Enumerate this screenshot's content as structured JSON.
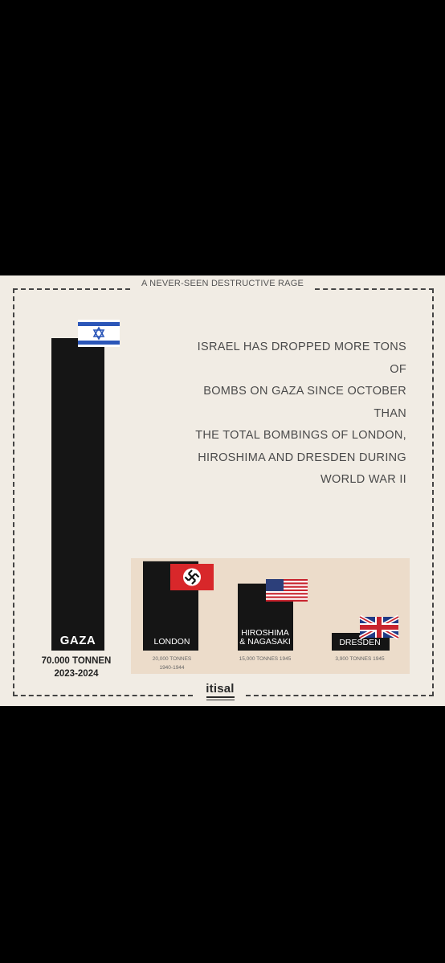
{
  "header": "A NEVER-SEEN DESTRUCTIVE RAGE",
  "headline_lines": [
    "ISRAEL HAS DROPPED MORE TONS OF",
    "BOMBS ON GAZA SINCE OCTOBER THAN",
    "THE TOTAL BOMBINGS OF LONDON,",
    "HIROSHIMA AND DRESDEN DURING",
    "WORLD WAR II"
  ],
  "logo": "itisal",
  "flags": {
    "gaza": "israel-flag-icon",
    "london": "nazi-flag-icon",
    "hiroshima": "usa-flag-icon",
    "dresden": "uk-flag-icon"
  },
  "colors": {
    "background": "#f1ece4",
    "bar": "#151515",
    "inset": "#ecdcca",
    "headline": "#4a4a4a"
  },
  "chart_data": {
    "type": "bar",
    "categories": [
      "GAZA",
      "LONDON",
      "HIROSHIMA & NAGASAKI",
      "DRESDEN"
    ],
    "values": [
      70000,
      20000,
      15000,
      3900
    ],
    "value_labels": [
      "70.000 TONNEN",
      "20,000 TONNES",
      "15,000 TONNES 1945",
      "3,900 TONNES 1945"
    ],
    "periods": [
      "2023-2024",
      "1940-1944",
      "",
      ""
    ],
    "bar_label_lines": [
      [
        "GAZA"
      ],
      [
        "LONDON"
      ],
      [
        "HIROSHIMA",
        "& NAGASAKI"
      ],
      [
        "DRESDEN"
      ]
    ],
    "title": "",
    "xlabel": "",
    "ylabel": ""
  }
}
